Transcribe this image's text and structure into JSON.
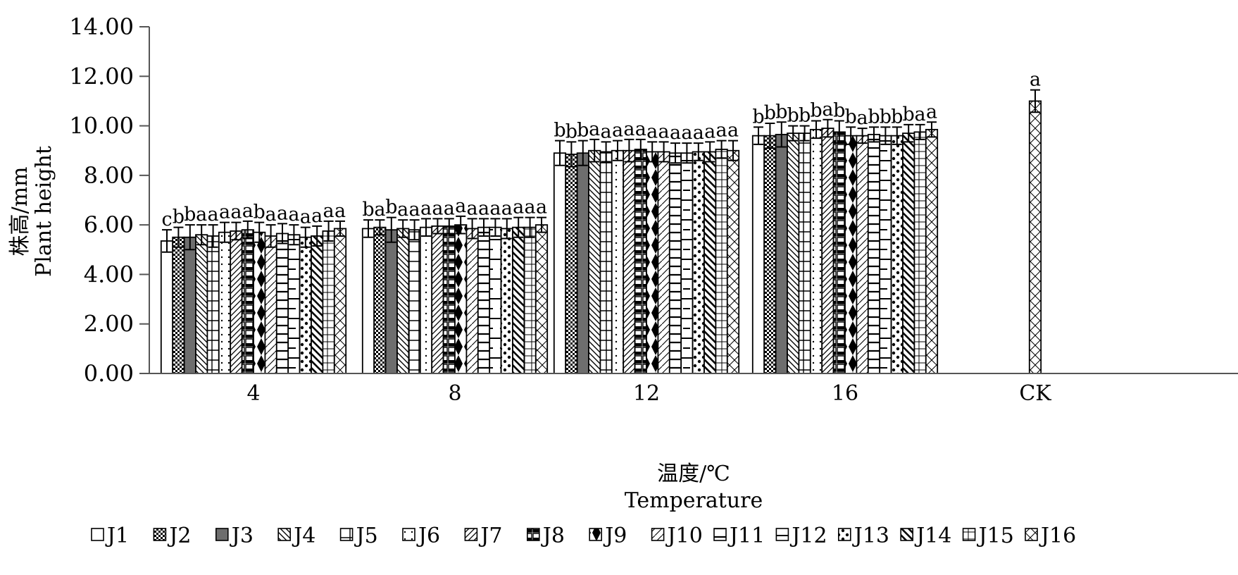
{
  "chart_data": {
    "type": "bar",
    "title": "",
    "xlabel": [
      "温度/℃",
      "Temperature"
    ],
    "ylabel": [
      "株高/mm",
      "Plant height"
    ],
    "ylim": [
      0,
      14
    ],
    "y_ticks": [
      "0.00",
      "2.00",
      "4.00",
      "6.00",
      "8.00",
      "10.00",
      "12.00",
      "14.00"
    ],
    "y_tick_values": [
      0,
      2,
      4,
      6,
      8,
      10,
      12,
      14
    ],
    "grid": false,
    "legend_position": "bottom",
    "categories": [
      "4",
      "8",
      "12",
      "16",
      "CK"
    ],
    "series": [
      {
        "name": "J1",
        "values": [
          5.35,
          5.85,
          8.9,
          9.6,
          null
        ],
        "errors": [
          0.45,
          0.35,
          0.5,
          0.35,
          null
        ],
        "letters": [
          "c",
          "b",
          "b",
          "b",
          ""
        ]
      },
      {
        "name": "J2",
        "values": [
          5.5,
          5.9,
          8.85,
          9.6,
          null
        ],
        "errors": [
          0.4,
          0.3,
          0.5,
          0.5,
          null
        ],
        "letters": [
          "b",
          "a",
          "b",
          "b",
          ""
        ]
      },
      {
        "name": "J3",
        "values": [
          5.5,
          5.8,
          8.9,
          9.65,
          null
        ],
        "errors": [
          0.5,
          0.5,
          0.5,
          0.5,
          null
        ],
        "letters": [
          "b",
          "b",
          "b",
          "b",
          ""
        ]
      },
      {
        "name": "J4",
        "values": [
          5.6,
          5.85,
          9.0,
          9.7,
          null
        ],
        "errors": [
          0.4,
          0.35,
          0.45,
          0.3,
          null
        ],
        "letters": [
          "a",
          "a",
          "a",
          "b",
          ""
        ]
      },
      {
        "name": "J5",
        "values": [
          5.55,
          5.8,
          8.95,
          9.7,
          null
        ],
        "errors": [
          0.45,
          0.4,
          0.4,
          0.3,
          null
        ],
        "letters": [
          "a",
          "a",
          "a",
          "b",
          ""
        ]
      },
      {
        "name": "J6",
        "values": [
          5.7,
          5.9,
          9.0,
          9.85,
          null
        ],
        "errors": [
          0.4,
          0.35,
          0.4,
          0.35,
          null
        ],
        "letters": [
          "a",
          "a",
          "a",
          "b",
          ""
        ]
      },
      {
        "name": "J7",
        "values": [
          5.75,
          5.95,
          9.0,
          9.9,
          null
        ],
        "errors": [
          0.35,
          0.3,
          0.45,
          0.35,
          null
        ],
        "letters": [
          "a",
          "a",
          "a",
          "a",
          ""
        ]
      },
      {
        "name": "J8",
        "values": [
          5.8,
          5.95,
          9.05,
          9.75,
          null
        ],
        "errors": [
          0.35,
          0.3,
          0.4,
          0.45,
          null
        ],
        "letters": [
          "a",
          "a",
          "a",
          "b",
          ""
        ]
      },
      {
        "name": "J9",
        "values": [
          5.7,
          6.0,
          8.95,
          9.6,
          null
        ],
        "errors": [
          0.4,
          0.35,
          0.4,
          0.35,
          null
        ],
        "letters": [
          "b",
          "a",
          "a",
          "b",
          ""
        ]
      },
      {
        "name": "J10",
        "values": [
          5.55,
          5.85,
          8.95,
          9.6,
          null
        ],
        "errors": [
          0.45,
          0.4,
          0.4,
          0.3,
          null
        ],
        "letters": [
          "a",
          "a",
          "a",
          "a",
          ""
        ]
      },
      {
        "name": "J11",
        "values": [
          5.65,
          5.9,
          8.9,
          9.65,
          null
        ],
        "errors": [
          0.4,
          0.35,
          0.4,
          0.3,
          null
        ],
        "letters": [
          "a",
          "a",
          "a",
          "b",
          ""
        ]
      },
      {
        "name": "J12",
        "values": [
          5.6,
          5.9,
          8.9,
          9.6,
          null
        ],
        "errors": [
          0.4,
          0.35,
          0.4,
          0.35,
          null
        ],
        "letters": [
          "a",
          "a",
          "a",
          "b",
          ""
        ]
      },
      {
        "name": "J13",
        "values": [
          5.5,
          5.85,
          8.95,
          9.6,
          null
        ],
        "errors": [
          0.4,
          0.4,
          0.35,
          0.35,
          null
        ],
        "letters": [
          "a",
          "a",
          "a",
          "b",
          ""
        ]
      },
      {
        "name": "J14",
        "values": [
          5.55,
          5.9,
          8.95,
          9.7,
          null
        ],
        "errors": [
          0.4,
          0.4,
          0.4,
          0.35,
          null
        ],
        "letters": [
          "a",
          "a",
          "a",
          "b",
          ""
        ]
      },
      {
        "name": "J15",
        "values": [
          5.75,
          5.9,
          9.05,
          9.75,
          null
        ],
        "errors": [
          0.4,
          0.4,
          0.35,
          0.3,
          null
        ],
        "letters": [
          "a",
          "a",
          "a",
          "a",
          ""
        ]
      },
      {
        "name": "J16",
        "values": [
          5.85,
          6.0,
          9.0,
          9.85,
          11.0
        ],
        "errors": [
          0.3,
          0.3,
          0.4,
          0.3,
          0.45
        ],
        "letters": [
          "a",
          "a",
          "a",
          "a",
          "a"
        ]
      }
    ]
  }
}
